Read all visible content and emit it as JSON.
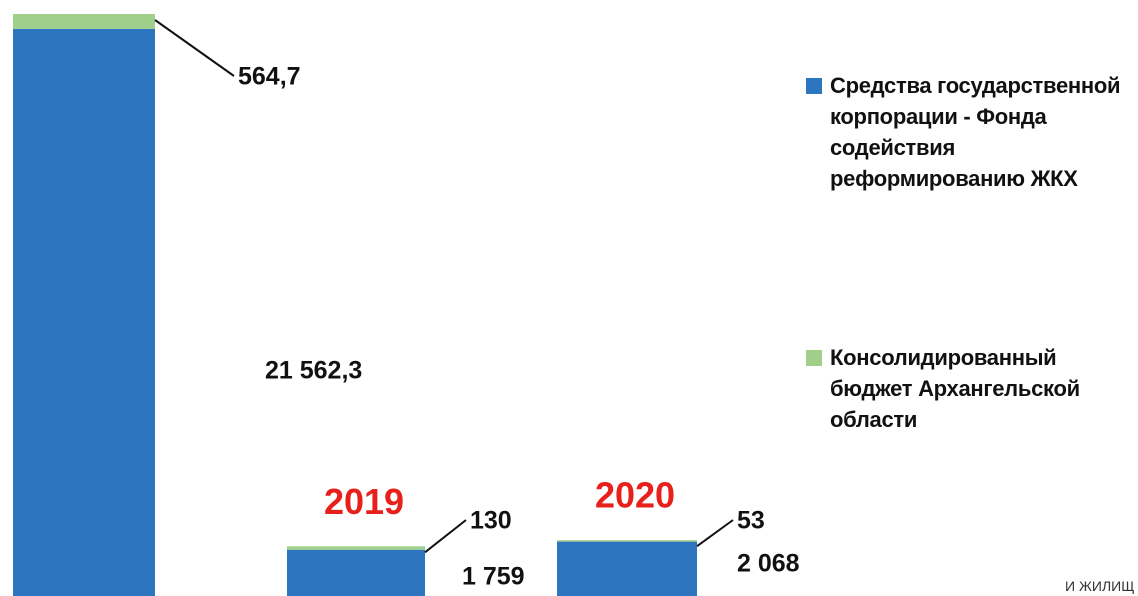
{
  "chart_data": {
    "type": "stacked_bar",
    "categories": [
      null,
      "2019",
      "2020"
    ],
    "category_color": "#e8201c",
    "series": [
      {
        "name": "Средства государственной корпорации - Фонда содействия реформированию ЖКХ",
        "color": "#2e75c0",
        "values": [
          21562.3,
          1759,
          2068
        ],
        "value_labels": [
          "21 562,3",
          "1 759",
          "2 068"
        ]
      },
      {
        "name": "Консолидированный бюджет Архангельской области",
        "color": "#9fcf8a",
        "values": [
          564.7,
          130,
          53
        ],
        "value_labels": [
          "564,7",
          "130",
          "53"
        ]
      }
    ]
  },
  "footer_text": "И ЖИЛИЩ"
}
